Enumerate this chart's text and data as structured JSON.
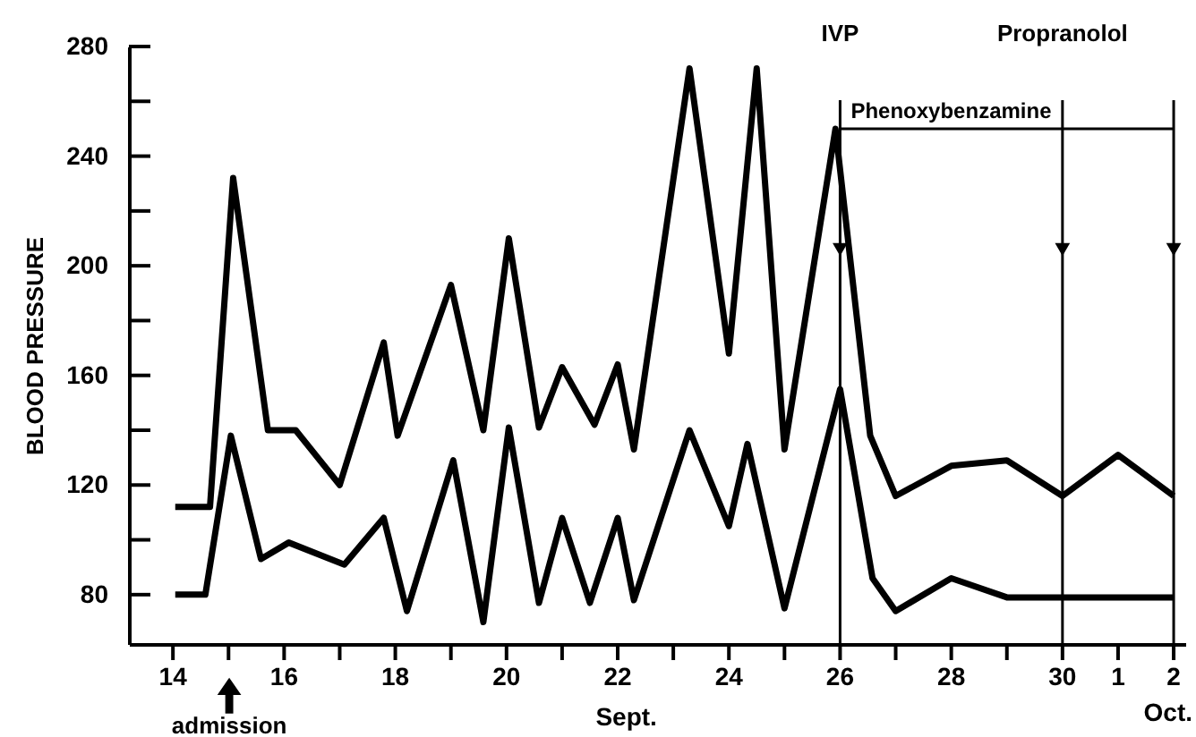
{
  "chart_data": {
    "type": "line",
    "ylabel": "BLOOD PRESSURE",
    "xlabel": "Sept.",
    "series": [
      {
        "color": "#000000",
        "x": [
          "--09-14T01:00",
          "--09-14T16:00",
          "--09-15T02:00",
          "--09-15T17:00",
          "--09-16T05:00",
          "--09-17T00:00",
          "--09-17T19:00",
          "--09-18T01:00",
          "--09-19T00:00",
          "--09-19T14:00",
          "--09-20T01:00",
          "--09-20T14:00",
          "--09-21T00:00",
          "--09-21T14:00",
          "--09-22T00:00",
          "--09-22T07:00",
          "--09-23T07:00",
          "--09-24T00:00",
          "--09-24T12:00",
          "--09-25T00:00",
          "--09-25T22:00",
          "--09-26T13:00",
          "--09-27T00:00",
          "--09-28T00:00",
          "--09-29T00:00",
          "--09-30T00:00",
          "--10-01T00:00",
          "--10-02T00:00"
        ],
        "values": [
          112,
          112,
          232,
          140,
          140,
          120,
          172,
          138,
          193,
          140,
          210,
          141,
          163,
          142,
          164,
          133,
          272,
          168,
          272,
          133,
          250,
          138,
          116,
          127,
          129,
          116,
          131,
          116
        ]
      },
      {
        "color": "#000000",
        "x": [
          "--09-14T01:00",
          "--09-14T14:00",
          "--09-15T01:00",
          "--09-15T14:00",
          "--09-16T02:00",
          "--09-17T02:00",
          "--09-17T19:00",
          "--09-18T05:00",
          "--09-19T01:00",
          "--09-19T14:00",
          "--09-20T01:00",
          "--09-20T14:00",
          "--09-21T00:00",
          "--09-21T12:00",
          "--09-22T00:00",
          "--09-22T07:00",
          "--09-23T07:00",
          "--09-24T00:00",
          "--09-24T08:00",
          "--09-25T00:00",
          "--09-26T00:00",
          "--09-26T14:00",
          "--09-27T00:00",
          "--09-28T00:00",
          "--09-29T00:00",
          "--10-02T00:00"
        ],
        "values": [
          80,
          80,
          138,
          93,
          99,
          91,
          108,
          74,
          129,
          70,
          141,
          77,
          108,
          77,
          108,
          78,
          140,
          105,
          135,
          75,
          155,
          86,
          74,
          86,
          79,
          79
        ]
      }
    ],
    "xlim": [
      "--09-13T05:00",
      "--10-02T05:00"
    ],
    "xticks": [
      {
        "value": "--09-14",
        "label": "14"
      },
      {
        "value": "--09-15",
        "label": null
      },
      {
        "value": "--09-16",
        "label": "16"
      },
      {
        "value": "--09-17",
        "label": null
      },
      {
        "value": "--09-18",
        "label": "18"
      },
      {
        "value": "--09-19",
        "label": null
      },
      {
        "value": "--09-20",
        "label": "20"
      },
      {
        "value": "--09-21",
        "label": null
      },
      {
        "value": "--09-22",
        "label": "22"
      },
      {
        "value": "--09-23",
        "label": null
      },
      {
        "value": "--09-24",
        "label": "24"
      },
      {
        "value": "--09-25",
        "label": null
      },
      {
        "value": "--09-26",
        "label": "26"
      },
      {
        "value": "--09-27",
        "label": null
      },
      {
        "value": "--09-28",
        "label": "28"
      },
      {
        "value": "--09-29",
        "label": null
      },
      {
        "value": "--09-30",
        "label": "30"
      },
      {
        "value": "--10-01",
        "label": "1"
      },
      {
        "value": "--10-02",
        "label": "2"
      }
    ],
    "ylim": [
      62,
      280
    ],
    "yticks": [
      80,
      {
        "value": 100,
        "label": null
      },
      120,
      {
        "value": 140,
        "label": null
      },
      160,
      {
        "value": 180,
        "label": null
      },
      200,
      {
        "value": 220,
        "label": null
      },
      240,
      {
        "value": 260,
        "label": null
      },
      280
    ],
    "ref_lines": [
      {
        "axis": "x",
        "value": "--09-26",
        "label": "IVP"
      },
      {
        "axis": "x",
        "value": "--09-30",
        "label": "Propranolol"
      },
      {
        "axis": "x",
        "value": "--10-02"
      }
    ],
    "annotations": [
      "admission",
      {
        "text": "Phenoxybenzamine",
        "x": "--09-26",
        "y": 250
      },
      "Oct."
    ]
  }
}
